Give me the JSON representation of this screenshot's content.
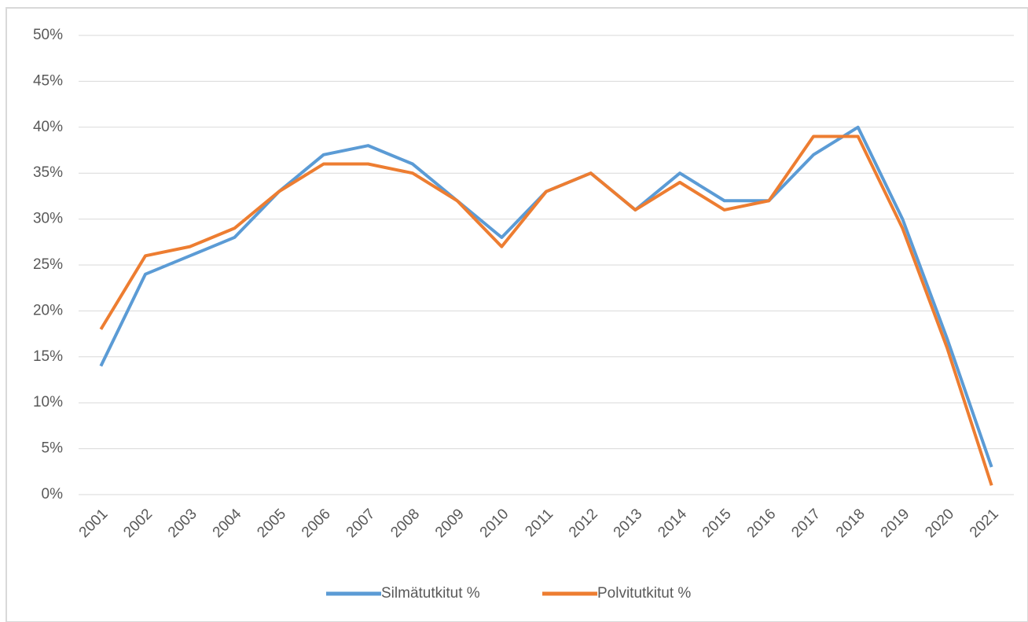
{
  "chart_data": {
    "type": "line",
    "categories": [
      "2001",
      "2002",
      "2003",
      "2004",
      "2005",
      "2006",
      "2007",
      "2008",
      "2009",
      "2010",
      "2011",
      "2012",
      "2013",
      "2014",
      "2015",
      "2016",
      "2017",
      "2018",
      "2019",
      "2020",
      "2021"
    ],
    "series": [
      {
        "name": "Silmätutkitut %",
        "color": "#5b9bd5",
        "values": [
          14,
          24,
          26,
          28,
          33,
          37,
          38,
          36,
          32,
          28,
          33,
          35,
          31,
          35,
          32,
          32,
          37,
          40,
          30,
          17,
          3
        ]
      },
      {
        "name": "Polvitutkitut %",
        "color": "#ed7d31",
        "values": [
          18,
          26,
          27,
          29,
          33,
          36,
          36,
          35,
          32,
          27,
          33,
          35,
          31,
          34,
          31,
          32,
          39,
          39,
          29,
          16,
          1
        ]
      }
    ],
    "ylim": [
      0,
      50
    ],
    "yticks": [
      {
        "value": 0,
        "label": "0%"
      },
      {
        "value": 5,
        "label": "5%"
      },
      {
        "value": 10,
        "label": "10%"
      },
      {
        "value": 15,
        "label": "15%"
      },
      {
        "value": 20,
        "label": "20%"
      },
      {
        "value": 25,
        "label": "25%"
      },
      {
        "value": 30,
        "label": "30%"
      },
      {
        "value": 35,
        "label": "35%"
      },
      {
        "value": 40,
        "label": "40%"
      },
      {
        "value": 45,
        "label": "45%"
      },
      {
        "value": 50,
        "label": "50%"
      }
    ],
    "grid": true,
    "legend": "bottom"
  }
}
